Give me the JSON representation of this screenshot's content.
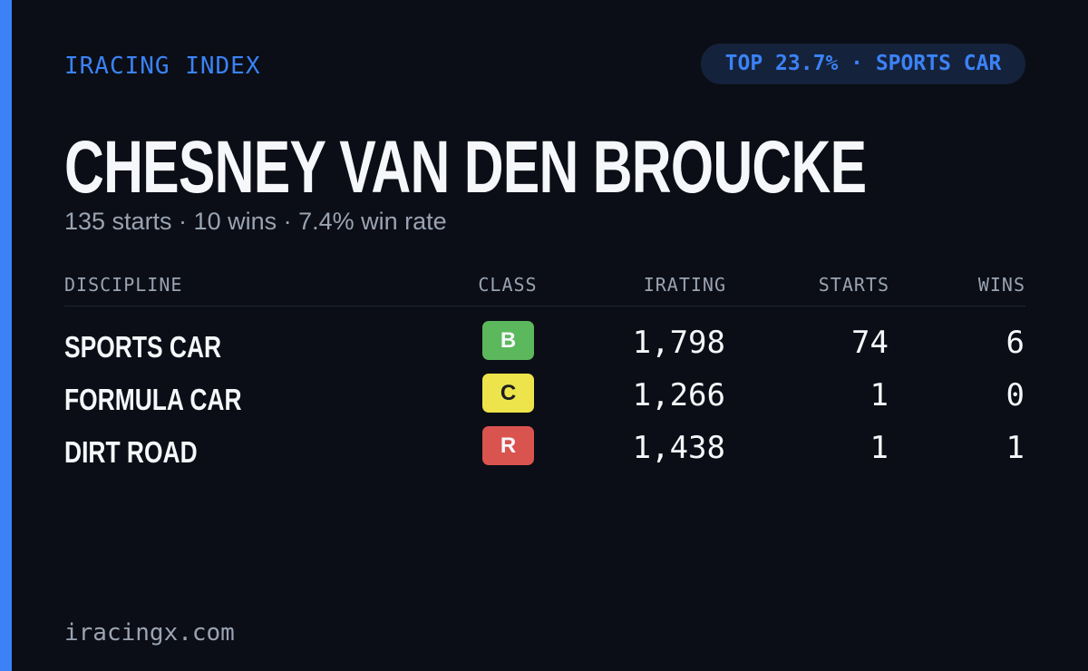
{
  "header": {
    "brand": "IRACING INDEX",
    "badge": "TOP 23.7% · SPORTS CAR"
  },
  "driver": {
    "name": "CHESNEY VAN DEN BROUCKE",
    "summary": "135 starts · 10 wins · 7.4% win rate"
  },
  "table": {
    "columns": [
      "DISCIPLINE",
      "CLASS",
      "IRATING",
      "STARTS",
      "WINS"
    ],
    "rows": [
      [
        "SPORTS CAR",
        "B",
        "1,798",
        "74",
        "6"
      ],
      [
        "FORMULA CAR",
        "C",
        "1,266",
        "1",
        "0"
      ],
      [
        "DIRT ROAD",
        "R",
        "1,438",
        "1",
        "1"
      ]
    ]
  },
  "footer": {
    "site": "iracingx.com"
  }
}
